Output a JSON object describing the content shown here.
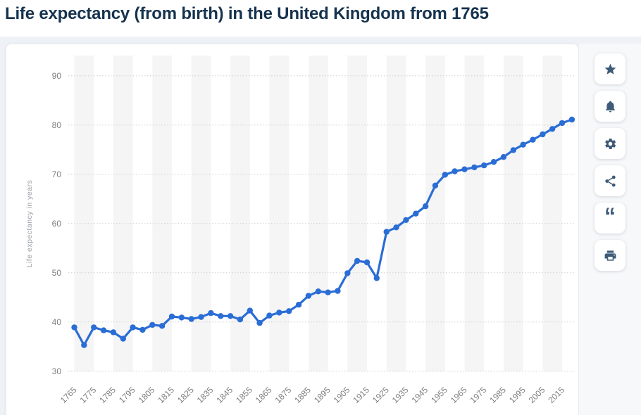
{
  "header": {
    "title": "Life expectancy (from birth) in the United Kingdom from 1765"
  },
  "toolbar": {
    "buttons": [
      {
        "icon": "star-icon"
      },
      {
        "icon": "bell-icon"
      },
      {
        "icon": "gear-icon"
      },
      {
        "icon": "share-icon"
      },
      {
        "icon": "quote-icon"
      },
      {
        "icon": "print-icon"
      }
    ],
    "quote_glyph": "“"
  },
  "colors": {
    "title_text": "#16334f",
    "icon": "#3d5a78",
    "line": "#2a6dd5",
    "band": "#f5f5f6",
    "gridline": "#cfcfcf",
    "tick_text": "#7e7e7e",
    "axis_title_text": "#9aa0a6",
    "card_bg": "#ffffff",
    "page_bg": "#eef1f5"
  },
  "chart_data": {
    "type": "line",
    "title": "Life expectancy (from birth) in the United Kingdom from 1765",
    "ylabel": "Life expectancy in years",
    "xlabel": "",
    "ylim": [
      30,
      90
    ],
    "yticks": [
      30,
      40,
      50,
      60,
      70,
      80,
      90
    ],
    "xticks": [
      1765,
      1775,
      1785,
      1795,
      1805,
      1815,
      1825,
      1835,
      1845,
      1855,
      1865,
      1875,
      1885,
      1895,
      1905,
      1915,
      1925,
      1935,
      1945,
      1955,
      1965,
      1975,
      1985,
      1995,
      2005,
      2015
    ],
    "grid": "horizontal-dotted",
    "background_bands": "alternating decade stripes",
    "legend": "none",
    "x": [
      1765,
      1770,
      1775,
      1780,
      1785,
      1790,
      1795,
      1800,
      1805,
      1810,
      1815,
      1820,
      1825,
      1830,
      1835,
      1840,
      1845,
      1850,
      1855,
      1860,
      1865,
      1870,
      1875,
      1880,
      1885,
      1890,
      1895,
      1900,
      1905,
      1910,
      1915,
      1920,
      1925,
      1930,
      1935,
      1940,
      1945,
      1950,
      1955,
      1960,
      1965,
      1970,
      1975,
      1980,
      1985,
      1990,
      1995,
      2000,
      2005,
      2010,
      2015,
      2020
    ],
    "series": [
      {
        "name": "Life expectancy in years",
        "values": [
          38.9,
          35.3,
          38.9,
          38.3,
          37.9,
          36.6,
          38.9,
          38.4,
          39.4,
          39.2,
          41.1,
          40.9,
          40.6,
          41.0,
          41.8,
          41.2,
          41.2,
          40.5,
          42.3,
          39.8,
          41.3,
          41.9,
          42.2,
          43.5,
          45.3,
          46.2,
          46.0,
          46.3,
          49.9,
          52.4,
          52.1,
          48.9,
          58.3,
          59.2,
          60.7,
          62.0,
          63.5,
          67.7,
          69.9,
          70.6,
          71.0,
          71.4,
          71.8,
          72.5,
          73.5,
          74.9,
          76.0,
          77.0,
          78.1,
          79.2,
          80.4,
          81.1
        ]
      }
    ]
  }
}
